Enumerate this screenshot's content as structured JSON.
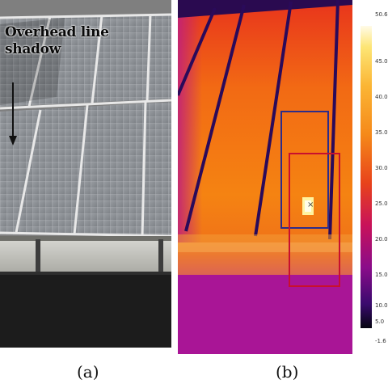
{
  "panel_a": {
    "annotation_line1": "Overhead line",
    "annotation_line2": "shadow",
    "caption": "(a)"
  },
  "panel_b": {
    "caption": "(b)",
    "scale_top": "50.6 °C",
    "scale_bottom": "-1.6 °C",
    "scale_ticks": [
      "45.0",
      "40.0",
      "35.0",
      "30.0",
      "25.0",
      "20.0",
      "15.0",
      "10.0",
      "5.0"
    ],
    "marker": "×"
  }
}
